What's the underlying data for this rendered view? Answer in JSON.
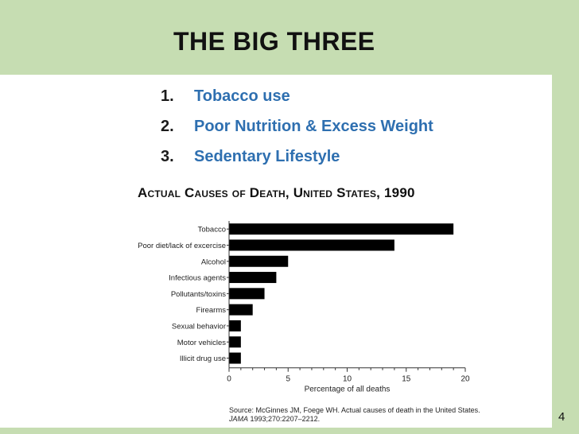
{
  "slide": {
    "title": "THE BIG THREE",
    "bullets": [
      {
        "num": "1.",
        "text": "Tobacco use"
      },
      {
        "num": "2.",
        "text": "Poor Nutrition & Excess Weight"
      },
      {
        "num": "3.",
        "text": "Sedentary Lifestyle"
      }
    ],
    "source_line1": "Source: McGinnes JM, Foege WH. Actual causes of death in the United States.",
    "source_journal": "JAMA",
    "source_citation": " 1993;270:2207–2212.",
    "page_number": "4"
  },
  "colors": {
    "frame": "#c6ddb2",
    "bullet_text": "#2e6fb0",
    "bars": "#000000"
  },
  "chart_data": {
    "type": "bar",
    "orientation": "horizontal",
    "title": "Actual Causes of Death, United States, 1990",
    "categories": [
      "Tobacco",
      "Poor diet/lack of excercise",
      "Alcohol",
      "Infectious agents",
      "Pollutants/toxins",
      "Firearms",
      "Sexual behavior",
      "Motor vehicles",
      "Illicit drug use"
    ],
    "values": [
      19,
      14,
      5,
      4,
      3,
      2,
      1,
      1,
      1
    ],
    "xlabel": "Percentage of all deaths",
    "ylabel": "",
    "xlim": [
      0,
      20
    ],
    "xticks": [
      "0",
      "5",
      "10",
      "15",
      "20"
    ],
    "grid": false
  }
}
